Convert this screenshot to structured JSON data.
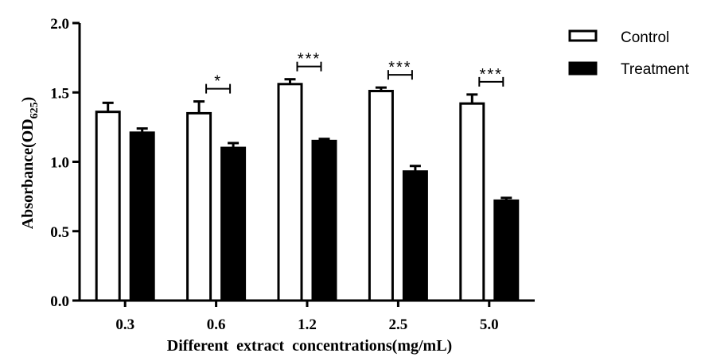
{
  "chart_data": {
    "type": "bar",
    "xlabel": "Different  extract  concentrations(mg/mL)",
    "ylabel": {
      "main": "Absorbance(OD",
      "sub": "625",
      "close": ")"
    },
    "ylim": [
      0,
      2.0
    ],
    "yticks": [
      "0.0",
      "0.5",
      "1.0",
      "1.5",
      "2.0"
    ],
    "categories": [
      "0.3",
      "0.6",
      "1.2",
      "2.5",
      "5.0"
    ],
    "legend_position": "top-right",
    "grid": false,
    "series": [
      {
        "name": "Control",
        "color": "#ffffff",
        "values": [
          1.36,
          1.35,
          1.56,
          1.51,
          1.42
        ],
        "errors": [
          0.065,
          0.085,
          0.035,
          0.025,
          0.065
        ]
      },
      {
        "name": "Treatment",
        "color": "#000000",
        "values": [
          1.21,
          1.1,
          1.15,
          0.93,
          0.72
        ],
        "errors": [
          0.03,
          0.035,
          0.015,
          0.04,
          0.02
        ]
      }
    ],
    "significance": [
      {
        "category_index": 1,
        "label": "*"
      },
      {
        "category_index": 2,
        "label": "***"
      },
      {
        "category_index": 3,
        "label": "***"
      },
      {
        "category_index": 4,
        "label": "***"
      }
    ]
  }
}
